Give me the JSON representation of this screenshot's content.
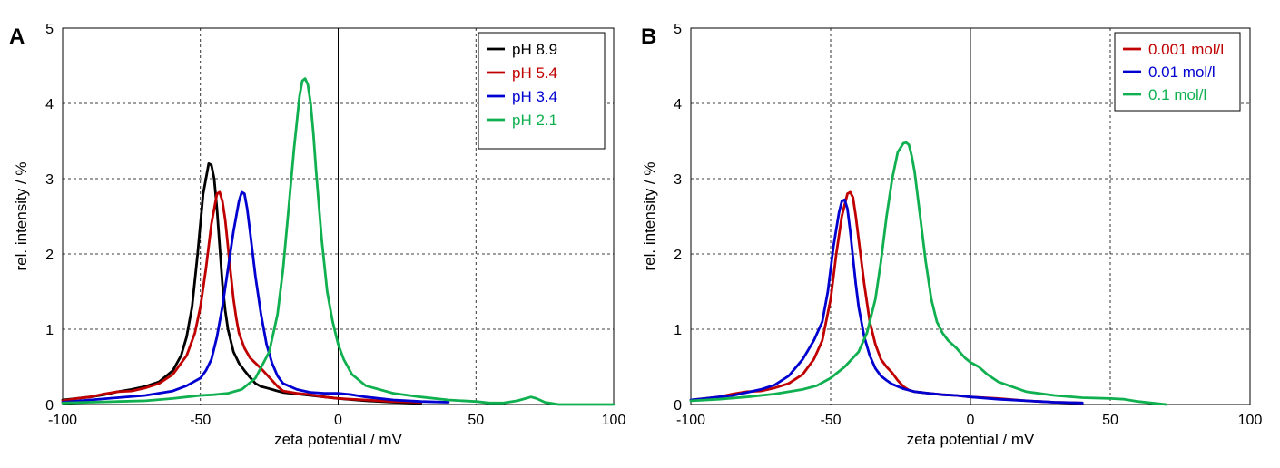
{
  "chart_data": [
    {
      "type": "line",
      "panel_label": "A",
      "xlabel": "zeta potential / mV",
      "ylabel": "rel. intensity / %",
      "xlim": [
        -100,
        100
      ],
      "ylim": [
        0,
        5
      ],
      "xticks": [
        -100,
        -50,
        0,
        50,
        100
      ],
      "yticks": [
        0,
        1,
        2,
        3,
        4,
        5
      ],
      "grid": "dashed",
      "legend_position": "top-right",
      "series": [
        {
          "name": "pH 8.9",
          "color": "#000000",
          "x": [
            -100,
            -95,
            -90,
            -85,
            -80,
            -75,
            -70,
            -65,
            -60,
            -57,
            -55,
            -53,
            -51,
            -49,
            -47,
            -46,
            -45,
            -44,
            -43,
            -42,
            -41,
            -40,
            -38,
            -36,
            -34,
            -32,
            -30,
            -28,
            -26,
            -24,
            -22,
            -20,
            -15,
            -10,
            -5,
            0,
            10,
            20,
            30
          ],
          "y": [
            0.06,
            0.08,
            0.1,
            0.13,
            0.17,
            0.2,
            0.24,
            0.3,
            0.45,
            0.65,
            0.9,
            1.3,
            2.0,
            2.8,
            3.2,
            3.18,
            3.0,
            2.6,
            2.1,
            1.6,
            1.25,
            1.0,
            0.7,
            0.55,
            0.45,
            0.36,
            0.28,
            0.24,
            0.22,
            0.2,
            0.18,
            0.16,
            0.14,
            0.12,
            0.1,
            0.08,
            0.05,
            0.03,
            0.02
          ]
        },
        {
          "name": "pH 5.4",
          "color": "#c00000",
          "x": [
            -100,
            -95,
            -90,
            -85,
            -80,
            -75,
            -70,
            -65,
            -60,
            -55,
            -52,
            -50,
            -48,
            -46,
            -44,
            -43,
            -42,
            -41,
            -40,
            -39,
            -38,
            -37,
            -36,
            -34,
            -32,
            -30,
            -28,
            -26,
            -24,
            -22,
            -20,
            -15,
            -10,
            -5,
            0,
            10,
            20,
            30
          ],
          "y": [
            0.05,
            0.08,
            0.1,
            0.14,
            0.17,
            0.18,
            0.22,
            0.28,
            0.4,
            0.65,
            0.95,
            1.3,
            1.8,
            2.4,
            2.8,
            2.82,
            2.7,
            2.45,
            2.1,
            1.75,
            1.4,
            1.15,
            0.95,
            0.75,
            0.62,
            0.55,
            0.48,
            0.4,
            0.32,
            0.24,
            0.18,
            0.15,
            0.13,
            0.1,
            0.08,
            0.06,
            0.04,
            0.03
          ]
        },
        {
          "name": "pH 3.4",
          "color": "#0000d0",
          "x": [
            -100,
            -90,
            -80,
            -70,
            -60,
            -55,
            -50,
            -48,
            -46,
            -44,
            -42,
            -40,
            -38,
            -36,
            -35,
            -34,
            -33,
            -32,
            -31,
            -30,
            -28,
            -26,
            -24,
            -22,
            -20,
            -15,
            -10,
            -5,
            0,
            5,
            10,
            20,
            30,
            40
          ],
          "y": [
            0.03,
            0.06,
            0.09,
            0.12,
            0.18,
            0.25,
            0.35,
            0.45,
            0.6,
            0.9,
            1.3,
            1.8,
            2.3,
            2.7,
            2.82,
            2.8,
            2.6,
            2.3,
            2.0,
            1.7,
            1.2,
            0.8,
            0.55,
            0.38,
            0.28,
            0.2,
            0.16,
            0.15,
            0.15,
            0.13,
            0.1,
            0.06,
            0.04,
            0.03
          ]
        },
        {
          "name": "pH 2.1",
          "color": "#10b050",
          "x": [
            -100,
            -90,
            -80,
            -70,
            -60,
            -55,
            -50,
            -45,
            -40,
            -35,
            -30,
            -25,
            -22,
            -20,
            -18,
            -16,
            -14,
            -13,
            -12,
            -11,
            -10,
            -9,
            -8,
            -6,
            -4,
            -2,
            0,
            2,
            5,
            10,
            20,
            30,
            40,
            50,
            55,
            60,
            65,
            68,
            70,
            72,
            75,
            80,
            100
          ],
          "y": [
            0.02,
            0.03,
            0.04,
            0.05,
            0.08,
            0.1,
            0.12,
            0.13,
            0.15,
            0.2,
            0.35,
            0.7,
            1.2,
            1.8,
            2.6,
            3.4,
            4.1,
            4.3,
            4.33,
            4.25,
            4.0,
            3.6,
            3.1,
            2.2,
            1.5,
            1.1,
            0.8,
            0.6,
            0.4,
            0.25,
            0.15,
            0.1,
            0.06,
            0.04,
            0.02,
            0.02,
            0.05,
            0.08,
            0.1,
            0.08,
            0.03,
            0.0,
            0.0
          ]
        }
      ]
    },
    {
      "type": "line",
      "panel_label": "B",
      "xlabel": "zeta potential / mV",
      "ylabel": "rel. intensity / %",
      "xlim": [
        -100,
        100
      ],
      "ylim": [
        0,
        5
      ],
      "xticks": [
        -100,
        -50,
        0,
        50,
        100
      ],
      "yticks": [
        0,
        1,
        2,
        3,
        4,
        5
      ],
      "grid": "dashed",
      "legend_position": "top-right",
      "series": [
        {
          "name": "0.001 mol/l",
          "color": "#c00000",
          "x": [
            -100,
            -95,
            -90,
            -85,
            -80,
            -75,
            -70,
            -65,
            -60,
            -56,
            -53,
            -50,
            -48,
            -46,
            -44,
            -43,
            -42,
            -41,
            -40,
            -38,
            -36,
            -34,
            -32,
            -30,
            -28,
            -26,
            -24,
            -22,
            -20,
            -15,
            -10,
            -5,
            0,
            5,
            10,
            20,
            30,
            40
          ],
          "y": [
            0.06,
            0.08,
            0.1,
            0.14,
            0.17,
            0.18,
            0.22,
            0.28,
            0.4,
            0.6,
            0.85,
            1.4,
            2.0,
            2.5,
            2.8,
            2.82,
            2.75,
            2.5,
            2.2,
            1.6,
            1.1,
            0.8,
            0.6,
            0.5,
            0.42,
            0.32,
            0.24,
            0.19,
            0.17,
            0.15,
            0.13,
            0.12,
            0.1,
            0.09,
            0.08,
            0.05,
            0.03,
            0.02
          ]
        },
        {
          "name": "0.01 mol/l",
          "color": "#0000d0",
          "x": [
            -100,
            -95,
            -90,
            -85,
            -80,
            -75,
            -70,
            -65,
            -60,
            -56,
            -53,
            -51,
            -49,
            -47,
            -46,
            -45,
            -44,
            -43,
            -42,
            -41,
            -40,
            -38,
            -36,
            -34,
            -32,
            -30,
            -28,
            -26,
            -24,
            -22,
            -20,
            -15,
            -10,
            -5,
            0,
            10,
            20,
            30,
            40
          ],
          "y": [
            0.06,
            0.08,
            0.1,
            0.12,
            0.16,
            0.2,
            0.26,
            0.38,
            0.6,
            0.85,
            1.1,
            1.5,
            2.1,
            2.55,
            2.7,
            2.72,
            2.6,
            2.3,
            1.95,
            1.6,
            1.3,
            0.9,
            0.65,
            0.48,
            0.38,
            0.32,
            0.27,
            0.24,
            0.21,
            0.19,
            0.17,
            0.15,
            0.13,
            0.12,
            0.1,
            0.07,
            0.05,
            0.03,
            0.02
          ]
        },
        {
          "name": "0.1 mol/l",
          "color": "#10b050",
          "x": [
            -100,
            -90,
            -80,
            -70,
            -60,
            -55,
            -50,
            -45,
            -40,
            -37,
            -34,
            -32,
            -30,
            -28,
            -26,
            -24,
            -23,
            -22,
            -21,
            -20,
            -18,
            -16,
            -14,
            -12,
            -10,
            -8,
            -5,
            -2,
            0,
            3,
            6,
            10,
            20,
            30,
            40,
            50,
            55,
            60,
            70
          ],
          "y": [
            0.05,
            0.07,
            0.1,
            0.14,
            0.2,
            0.25,
            0.35,
            0.5,
            0.7,
            0.95,
            1.4,
            1.9,
            2.5,
            3.0,
            3.35,
            3.47,
            3.48,
            3.45,
            3.3,
            3.1,
            2.5,
            1.9,
            1.4,
            1.1,
            0.95,
            0.85,
            0.75,
            0.62,
            0.56,
            0.5,
            0.4,
            0.3,
            0.17,
            0.12,
            0.09,
            0.08,
            0.07,
            0.04,
            0.0
          ]
        }
      ]
    }
  ]
}
